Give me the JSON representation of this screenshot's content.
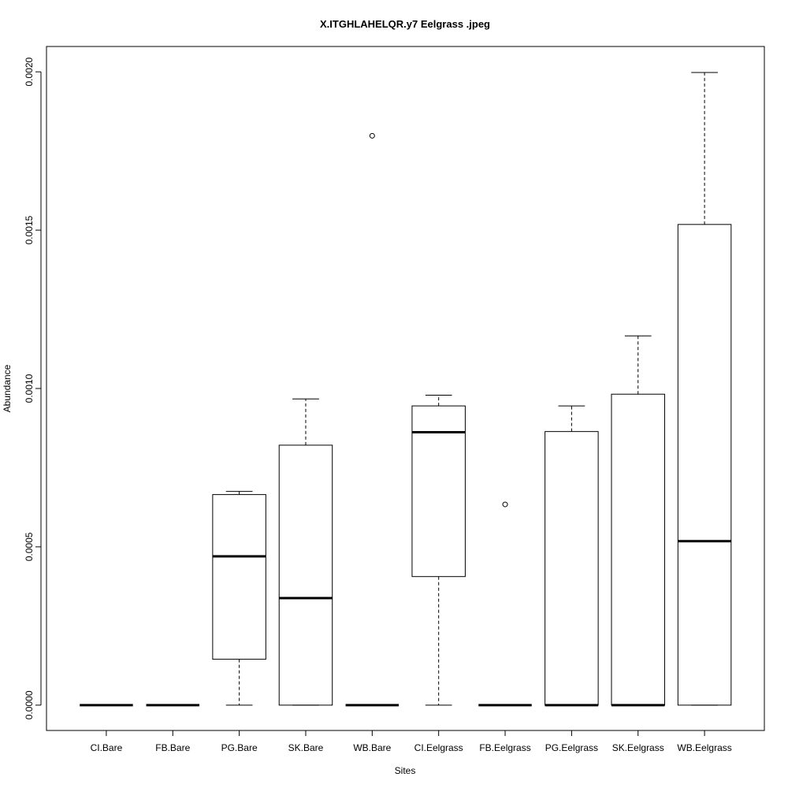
{
  "chart_data": {
    "type": "boxplot",
    "title": "X.ITGHLAHELQR.y7 Eelgrass .jpeg",
    "xlabel": "Sites",
    "ylabel": "Abundance",
    "ylim": [
      -8e-05,
      0.00208
    ],
    "yticks": [
      0.0,
      0.0005,
      0.001,
      0.0015,
      0.002
    ],
    "ytick_labels": [
      "0.0000",
      "0.0005",
      "0.0010",
      "0.0015",
      "0.0020"
    ],
    "categories": [
      "CI.Bare",
      "FB.Bare",
      "PG.Bare",
      "SK.Bare",
      "WB.Bare",
      "CI.Eelgrass",
      "FB.Eelgrass",
      "PG.Eelgrass",
      "SK.Eelgrass",
      "WB.Eelgrass"
    ],
    "boxes": [
      {
        "min": 0,
        "q1": 0,
        "median": 0,
        "q3": 0,
        "max": 0,
        "outliers": []
      },
      {
        "min": 0,
        "q1": 0,
        "median": 0,
        "q3": 0,
        "max": 0,
        "outliers": []
      },
      {
        "min": 0,
        "q1": 0.000145,
        "median": 0.00047,
        "q3": 0.000665,
        "max": 0.000675,
        "outliers": []
      },
      {
        "min": 0,
        "q1": 0,
        "median": 0.000338,
        "q3": 0.000821,
        "max": 0.000967,
        "outliers": []
      },
      {
        "min": 0,
        "q1": 0,
        "median": 0,
        "q3": 0,
        "max": 0,
        "outliers": [
          0.001798
        ]
      },
      {
        "min": 0,
        "q1": 0.000406,
        "median": 0.000862,
        "q3": 0.000945,
        "max": 0.000979,
        "outliers": []
      },
      {
        "min": 0,
        "q1": 0,
        "median": 0,
        "q3": 0,
        "max": 0,
        "outliers": [
          0.000634
        ]
      },
      {
        "min": 0,
        "q1": 0,
        "median": 0,
        "q3": 0.000864,
        "max": 0.000945,
        "outliers": []
      },
      {
        "min": 0,
        "q1": 0,
        "median": 0,
        "q3": 0.000982,
        "max": 0.001166,
        "outliers": []
      },
      {
        "min": 0,
        "q1": 0,
        "median": 0.000518,
        "q3": 0.001518,
        "max": 0.001998,
        "outliers": []
      }
    ],
    "grid": false,
    "legend": "none"
  }
}
